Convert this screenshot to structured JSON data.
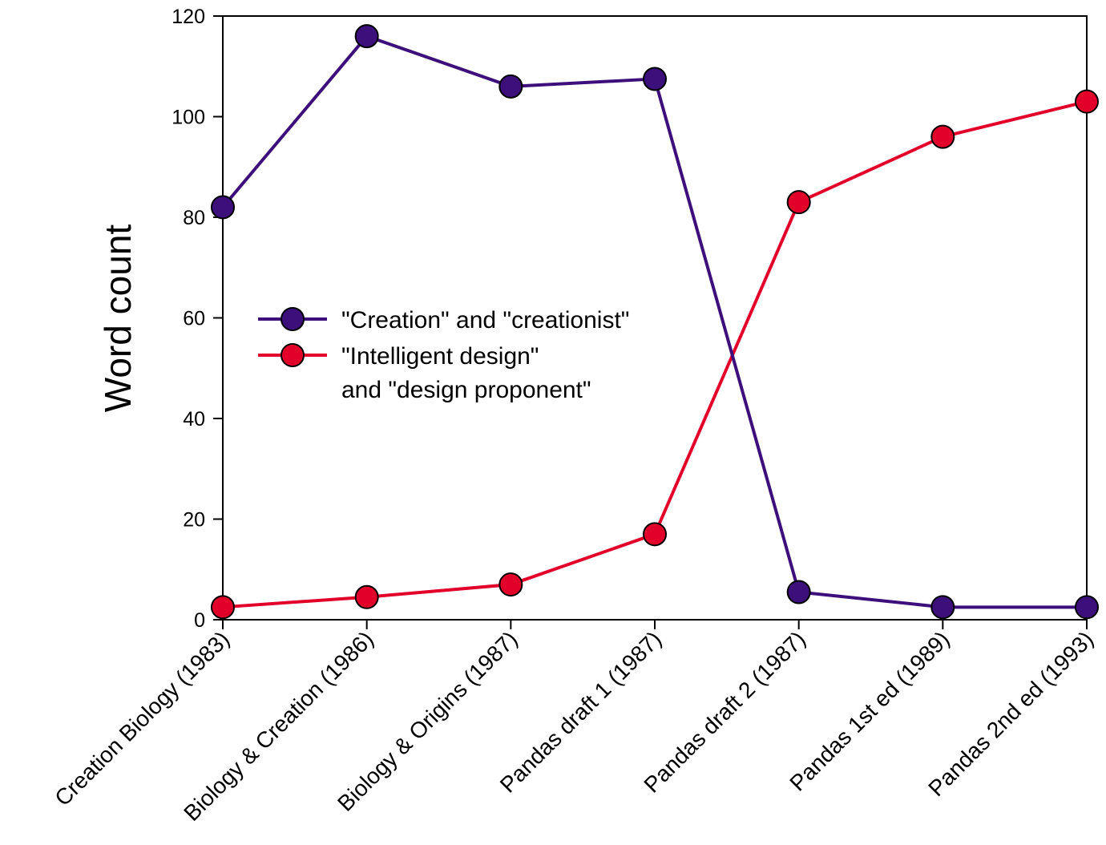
{
  "chart_data": {
    "type": "line",
    "title": "",
    "xlabel": "",
    "ylabel": "Word count",
    "ylim": [
      0,
      120
    ],
    "yticks": [
      0,
      20,
      40,
      60,
      80,
      100,
      120
    ],
    "grid": false,
    "legend_position": "center-left",
    "categories": [
      "Creation Biology (1983)",
      "Biology & Creation (1986)",
      "Biology & Origins (1987)",
      "Pandas draft 1 (1987)",
      "Pandas draft 2 (1987)",
      "Pandas 1st ed (1989)",
      "Pandas 2nd ed (1993)"
    ],
    "series": [
      {
        "name": "\"Creation\" and \"creationist\"",
        "color": "#3d0f7a",
        "values": [
          82,
          116,
          106,
          107.5,
          5.5,
          2.5,
          2.5
        ]
      },
      {
        "name_lines": [
          "\"Intelligent design\"",
          "and \"design proponent\""
        ],
        "color": "#e2002b",
        "values": [
          2.5,
          4.5,
          7,
          17,
          83,
          96,
          103
        ]
      }
    ]
  }
}
